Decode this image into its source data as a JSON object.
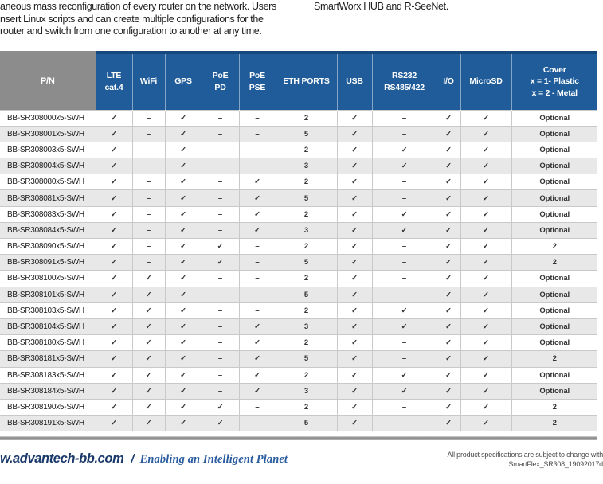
{
  "intro": {
    "left_lines": [
      "aneous mass reconfiguration of every router on the network. Users",
      "nsert Linux scripts and can create multiple configurations for the",
      "router and switch from one configuration to another at any time."
    ],
    "right_text": "SmartWorx HUB and R-SeeNet."
  },
  "table": {
    "columns": [
      "P/N",
      "LTE\ncat.4",
      "WiFi",
      "GPS",
      "PoE\nPD",
      "PoE\nPSE",
      "ETH PORTS",
      "USB",
      "RS232\nRS485/422",
      "I/O",
      "MicroSD",
      "Cover\nx = 1- Plastic\nx = 2 - Metal"
    ],
    "check_symbol": "✓",
    "dash_symbol": "–",
    "rows": [
      [
        "BB-SR308000x5-SWH",
        "✓",
        "–",
        "✓",
        "–",
        "–",
        "2",
        "✓",
        "–",
        "✓",
        "✓",
        "Optional"
      ],
      [
        "BB-SR308001x5-SWH",
        "✓",
        "–",
        "✓",
        "–",
        "–",
        "5",
        "✓",
        "–",
        "✓",
        "✓",
        "Optional"
      ],
      [
        "BB-SR308003x5-SWH",
        "✓",
        "–",
        "✓",
        "–",
        "–",
        "2",
        "✓",
        "✓",
        "✓",
        "✓",
        "Optional"
      ],
      [
        "BB-SR308004x5-SWH",
        "✓",
        "–",
        "✓",
        "–",
        "–",
        "3",
        "✓",
        "✓",
        "✓",
        "✓",
        "Optional"
      ],
      [
        "BB-SR308080x5-SWH",
        "✓",
        "–",
        "✓",
        "–",
        "✓",
        "2",
        "✓",
        "–",
        "✓",
        "✓",
        "Optional"
      ],
      [
        "BB-SR308081x5-SWH",
        "✓",
        "–",
        "✓",
        "–",
        "✓",
        "5",
        "✓",
        "–",
        "✓",
        "✓",
        "Optional"
      ],
      [
        "BB-SR308083x5-SWH",
        "✓",
        "–",
        "✓",
        "–",
        "✓",
        "2",
        "✓",
        "✓",
        "✓",
        "✓",
        "Optional"
      ],
      [
        "BB-SR308084x5-SWH",
        "✓",
        "–",
        "✓",
        "–",
        "✓",
        "3",
        "✓",
        "✓",
        "✓",
        "✓",
        "Optional"
      ],
      [
        "BB-SR308090x5-SWH",
        "✓",
        "–",
        "✓",
        "✓",
        "–",
        "2",
        "✓",
        "–",
        "✓",
        "✓",
        "2"
      ],
      [
        "BB-SR308091x5-SWH",
        "✓",
        "–",
        "✓",
        "✓",
        "–",
        "5",
        "✓",
        "–",
        "✓",
        "✓",
        "2"
      ],
      [
        "BB-SR308100x5-SWH",
        "✓",
        "✓",
        "✓",
        "–",
        "–",
        "2",
        "✓",
        "–",
        "✓",
        "✓",
        "Optional"
      ],
      [
        "BB-SR308101x5-SWH",
        "✓",
        "✓",
        "✓",
        "–",
        "–",
        "5",
        "✓",
        "–",
        "✓",
        "✓",
        "Optional"
      ],
      [
        "BB-SR308103x5-SWH",
        "✓",
        "✓",
        "✓",
        "–",
        "–",
        "2",
        "✓",
        "✓",
        "✓",
        "✓",
        "Optional"
      ],
      [
        "BB-SR308104x5-SWH",
        "✓",
        "✓",
        "✓",
        "–",
        "✓",
        "3",
        "✓",
        "✓",
        "✓",
        "✓",
        "Optional"
      ],
      [
        "BB-SR308180x5-SWH",
        "✓",
        "✓",
        "✓",
        "–",
        "✓",
        "2",
        "✓",
        "–",
        "✓",
        "✓",
        "Optional"
      ],
      [
        "BB-SR308181x5-SWH",
        "✓",
        "✓",
        "✓",
        "–",
        "✓",
        "5",
        "✓",
        "–",
        "✓",
        "✓",
        "2"
      ],
      [
        "BB-SR308183x5-SWH",
        "✓",
        "✓",
        "✓",
        "–",
        "✓",
        "2",
        "✓",
        "✓",
        "✓",
        "✓",
        "Optional"
      ],
      [
        "BB-SR308184x5-SWH",
        "✓",
        "✓",
        "✓",
        "–",
        "✓",
        "3",
        "✓",
        "✓",
        "✓",
        "✓",
        "Optional"
      ],
      [
        "BB-SR308190x5-SWH",
        "✓",
        "✓",
        "✓",
        "✓",
        "–",
        "2",
        "✓",
        "–",
        "✓",
        "✓",
        "2"
      ],
      [
        "BB-SR308191x5-SWH",
        "✓",
        "✓",
        "✓",
        "✓",
        "–",
        "5",
        "✓",
        "–",
        "✓",
        "✓",
        "2"
      ]
    ]
  },
  "footer": {
    "website": "w.advantech-bb.com",
    "slash": "/",
    "tagline": "Enabling an Intelligent Planet",
    "disclaimer": "All product specifications are subject to change with",
    "doc_code": "SmartFlex_SR308_19092017d"
  },
  "colors": {
    "header_blue": "#1F5C99",
    "header_blue_dark": "#15497D",
    "header_gray": "#8C8C8C",
    "row_alt": "#E8E8E8",
    "footer_navy": "#1B3A6B",
    "tagline_blue": "#2A5D9F"
  }
}
